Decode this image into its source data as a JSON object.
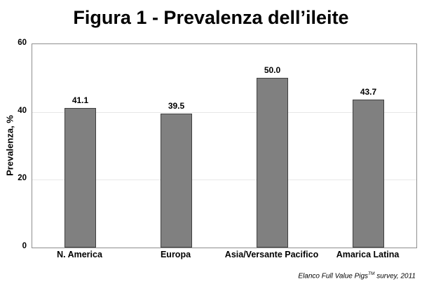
{
  "title": "Figura 1 - Prevalenza dell’ileite",
  "chart_data": {
    "type": "bar",
    "categories": [
      "N. America",
      "Europa",
      "Asia/Versante Pacifico",
      "Amarica Latina"
    ],
    "values": [
      41.1,
      39.5,
      50.0,
      43.7
    ],
    "value_labels": [
      "41.1",
      "39.5",
      "50.0",
      "43.7"
    ],
    "title": "Figura 1 - Prevalenza dell’ileite",
    "xlabel": "",
    "ylabel": "Prevalenza, %",
    "ylim": [
      0,
      60
    ],
    "yticks": [
      0,
      20,
      40,
      60
    ],
    "gridlines": [
      20,
      40
    ],
    "grid": "horizontal-only",
    "legend": "none",
    "bar_color": "#808080",
    "bar_border_color": "#404040",
    "plot_border_color": "#8e8e8e",
    "gridline_color": "#e7e7e7"
  },
  "footnote": {
    "prefix": "Elanco Full Value Pigs",
    "superscript": "TM",
    "suffix": " survey, 2011"
  }
}
